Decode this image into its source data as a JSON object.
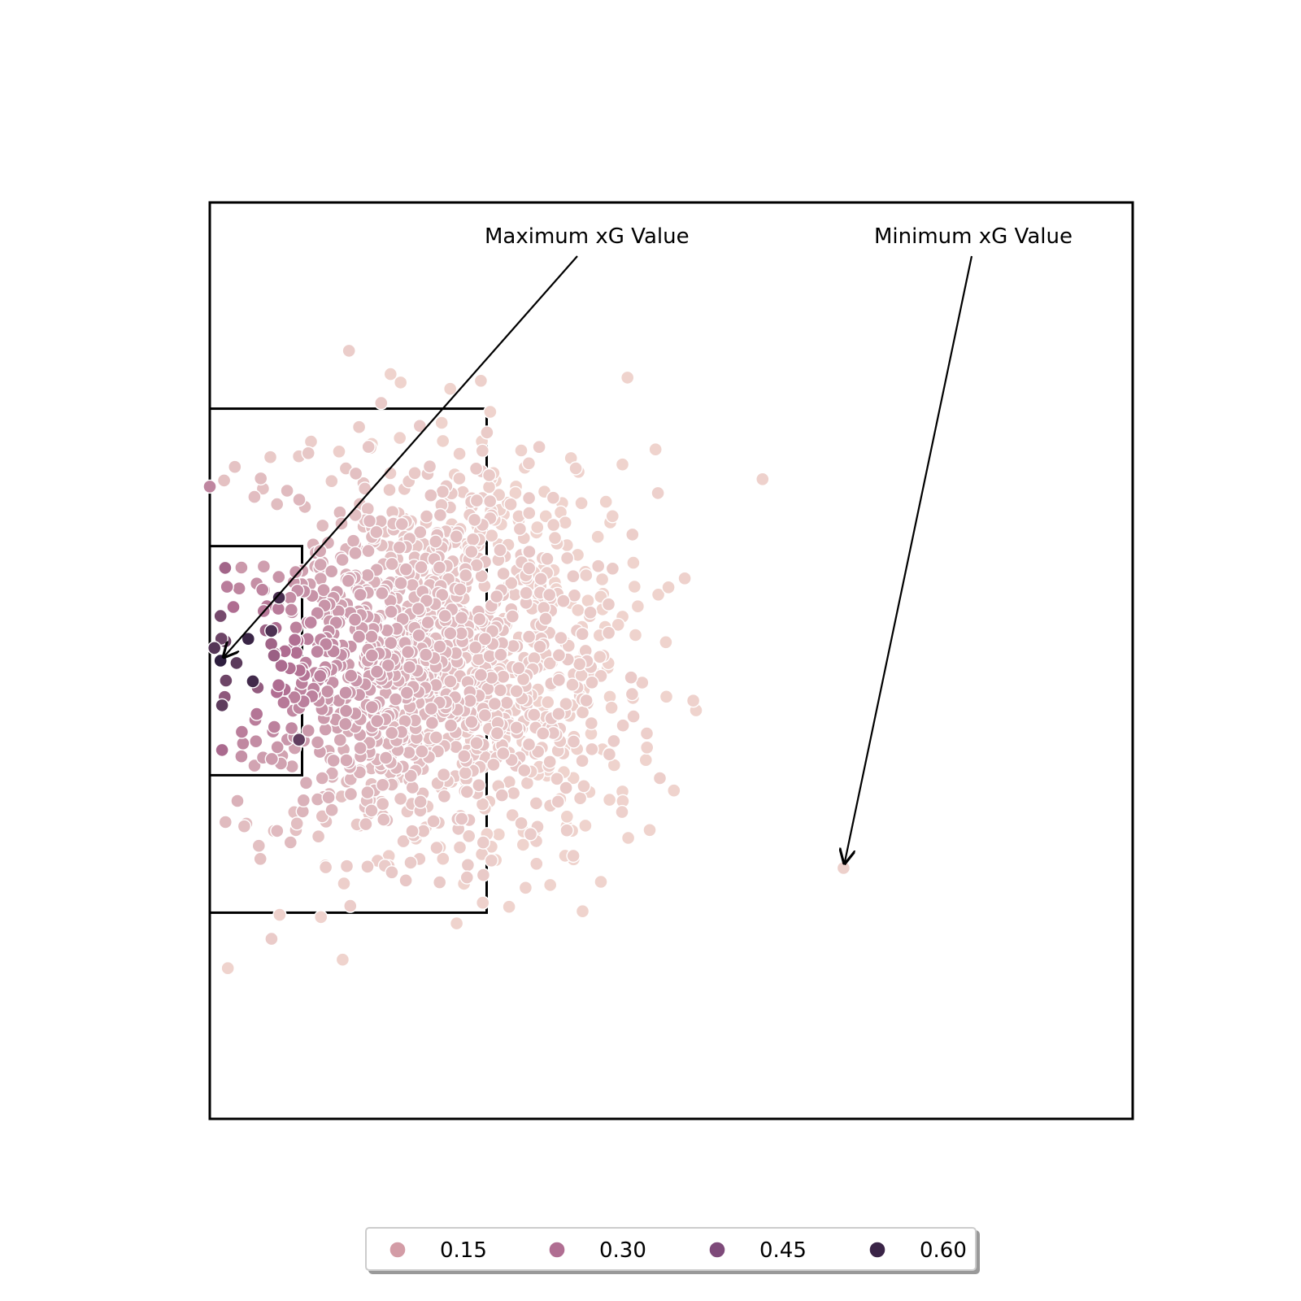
{
  "chart_data": {
    "type": "scatter",
    "title": "",
    "xlabel": "",
    "ylabel": "",
    "xlim": [
      60,
      120
    ],
    "ylim": [
      0,
      80
    ],
    "invert_x": true,
    "axes_visible": false,
    "grid": false,
    "hue_scale": {
      "min": 0.0,
      "max": 0.65,
      "color_low": "#f1d6cf",
      "color_mid": "#b06e92",
      "color_high": "#2e1e3e"
    },
    "pitch_lines": {
      "outline": {
        "x": [
          60,
          120
        ],
        "y": [
          0,
          80
        ]
      },
      "penalty_area": {
        "x": [
          102,
          120
        ],
        "y": [
          18,
          62
        ]
      },
      "six_yard_box": {
        "x": [
          114,
          120
        ],
        "y": [
          30,
          50
        ]
      }
    },
    "cluster": {
      "center_x": 105.5,
      "center_y": 40,
      "count": 1500,
      "seed": 7
    },
    "highlight_points": [
      {
        "x": 119.3,
        "y": 40.0,
        "xg": 0.65
      },
      {
        "x": 78.8,
        "y": 58.1,
        "xg": 0.02
      },
      {
        "x": 115.5,
        "y": 34.5,
        "xg": 0.58
      },
      {
        "x": 117.5,
        "y": 38.1,
        "xg": 0.62
      },
      {
        "x": 116.0,
        "y": 37.4,
        "xg": 0.57
      },
      {
        "x": 117.2,
        "y": 41.8,
        "xg": 0.6
      },
      {
        "x": 114.2,
        "y": 46.9,
        "xg": 0.52
      },
      {
        "x": 119.2,
        "y": 47.8,
        "xg": 0.34
      },
      {
        "x": 119.2,
        "y": 43.9,
        "xg": 0.53
      },
      {
        "x": 119.3,
        "y": 36.1,
        "xg": 0.47
      },
      {
        "x": 119.0,
        "y": 31.9,
        "xg": 0.36
      },
      {
        "x": 120.0,
        "y": 24.8,
        "xg": 0.25
      }
    ],
    "annotations": [
      {
        "text": "Maximum xG Value",
        "point": {
          "x": 119.3,
          "y": 40.0
        }
      },
      {
        "text": "Minimum xG Value",
        "point": {
          "x": 78.8,
          "y": 58.1
        }
      }
    ],
    "legend": {
      "placement": "bottom-center",
      "entries": [
        {
          "label": "0.15",
          "color": "#d39ca6"
        },
        {
          "label": "0.30",
          "color": "#b06e92"
        },
        {
          "label": "0.45",
          "color": "#7e4a7a"
        },
        {
          "label": "0.60",
          "color": "#3a2447"
        }
      ]
    }
  }
}
